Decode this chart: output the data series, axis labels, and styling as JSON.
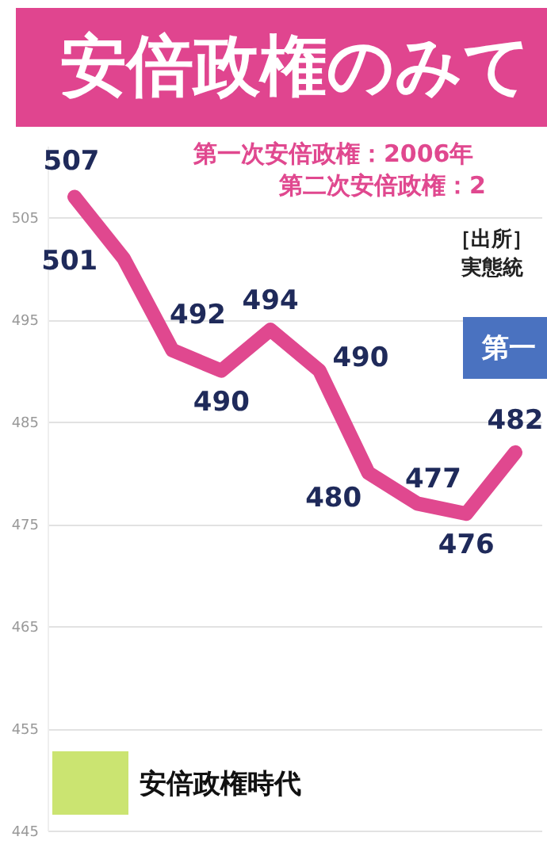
{
  "chart_data": {
    "type": "line",
    "title": "安倍政権のみて",
    "categories": [
      null,
      null,
      null,
      null,
      null,
      null,
      null,
      null,
      null,
      null
    ],
    "series": [
      {
        "color": "#e0488f",
        "values": [
          507,
          501,
          492,
          490,
          494,
          490,
          480,
          477,
          476,
          482
        ]
      }
    ],
    "ylim": [
      445,
      512
    ],
    "yticks": [
      445,
      455,
      465,
      475,
      485,
      495,
      505
    ],
    "grid": "y",
    "data_labels": true,
    "tick_labels": "y",
    "annotations": [
      "第一次安倍政権：2006年",
      "第二次安倍政権：2",
      "［出所］",
      "実態統",
      "第一",
      "安倍政権時代"
    ]
  }
}
